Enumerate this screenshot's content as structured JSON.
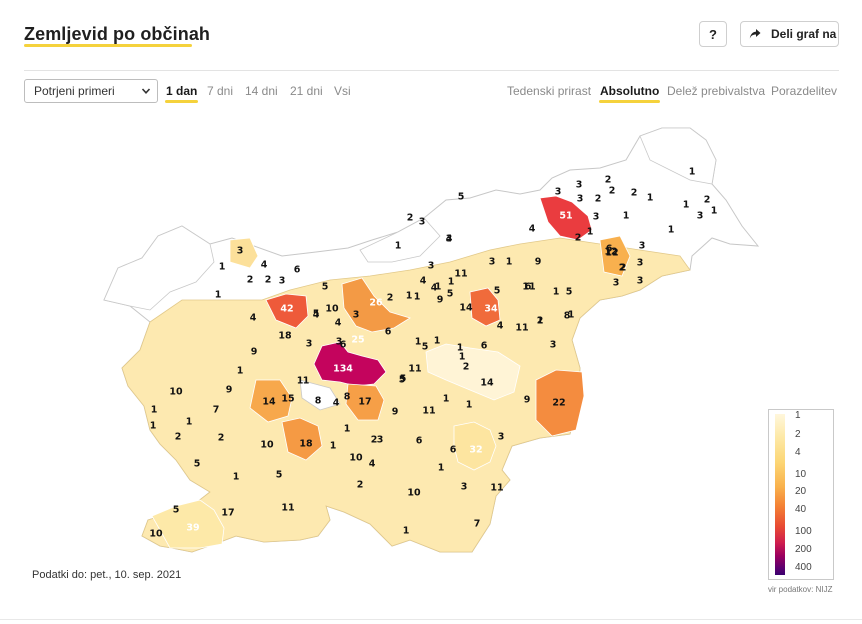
{
  "header": {
    "title": "Zemljevid po občinah",
    "help_label": "?",
    "share_label": "Deli graf na"
  },
  "controls": {
    "select_value": "Potrjeni primeri",
    "period_tabs": [
      "1 dan",
      "7 dni",
      "14 dni",
      "21 dni",
      "Vsi"
    ],
    "period_active": "1 dan",
    "mode_tabs": [
      "Tedenski prirast",
      "Absolutno",
      "Delež prebivalstva",
      "Porazdelitev"
    ],
    "mode_active": "Absolutno"
  },
  "legend": {
    "values": [
      "1",
      "2",
      "4",
      "10",
      "20",
      "40",
      "100",
      "200",
      "400"
    ]
  },
  "footer": {
    "date_note": "Podatki do: pet., 10. sep. 2021",
    "source": "vir podatkov: NIJZ"
  },
  "map_values": [
    {
      "v": "5",
      "c": "#fde5a0"
    },
    {
      "v": "1",
      "c": "#fff4d6"
    },
    {
      "v": "3",
      "c": "#fde9a8"
    },
    {
      "v": "2",
      "c": "#fdf0c6"
    },
    {
      "v": "2",
      "c": "#fdf0c6"
    },
    {
      "v": "1",
      "c": "#fff4d6"
    },
    {
      "v": "3",
      "c": "#fde9a8"
    },
    {
      "v": "3",
      "c": "#fde9a8"
    },
    {
      "v": "2",
      "c": "#fdf0c6"
    },
    {
      "v": "1",
      "c": "#fff4d6"
    },
    {
      "v": "51",
      "c": "#ea3c3f"
    },
    {
      "v": "2",
      "c": "#fdf0c6"
    },
    {
      "v": "3",
      "c": "#fde9a8"
    },
    {
      "v": "2",
      "c": "#fdf0c6"
    },
    {
      "v": "3",
      "c": "#fde9a8"
    },
    {
      "v": "1",
      "c": "#fff4d6"
    },
    {
      "v": "1",
      "c": "#fff4d6"
    },
    {
      "v": "2",
      "c": "#fdf0c6"
    },
    {
      "v": "2",
      "c": "#fdf0c6"
    },
    {
      "v": "3",
      "c": "#fde9a8"
    },
    {
      "v": "3",
      "c": "#fde9a8"
    },
    {
      "v": "1",
      "c": "#fff4d6"
    },
    {
      "v": "4",
      "c": "#fce09a"
    },
    {
      "v": "1",
      "c": "#fff4d6"
    },
    {
      "v": "6",
      "c": "#fcd983"
    },
    {
      "v": "3",
      "c": "#fde9a8"
    },
    {
      "v": "12",
      "c": "#f8b04e"
    },
    {
      "v": "2",
      "c": "#fdf0c6"
    },
    {
      "v": "3",
      "c": "#fde9a8"
    },
    {
      "v": "3",
      "c": "#fde9a8"
    },
    {
      "v": "2",
      "c": "#fdf0c6"
    },
    {
      "v": "3",
      "c": "#fde9a8"
    },
    {
      "v": "4",
      "c": "#fce09a"
    },
    {
      "v": "11",
      "c": "#f9b75a"
    },
    {
      "v": "9",
      "c": "#fbc76b"
    },
    {
      "v": "1",
      "c": "#fff4d6"
    },
    {
      "v": "3",
      "c": "#fde9a8"
    },
    {
      "v": "3",
      "c": "#fde9a8"
    },
    {
      "v": "1",
      "c": "#fff4d6"
    },
    {
      "v": "4",
      "c": "#fce09a"
    },
    {
      "v": "1",
      "c": "#fff4d6"
    },
    {
      "v": "4",
      "c": "#fce09a"
    },
    {
      "v": "6",
      "c": "#fcd983"
    },
    {
      "v": "5",
      "c": "#fde5a0"
    },
    {
      "v": "11",
      "c": "#f9b75a"
    },
    {
      "v": "3",
      "c": "#fde9a8"
    },
    {
      "v": "1",
      "c": "#fff4d6"
    },
    {
      "v": "1",
      "c": "#fff4d6"
    },
    {
      "v": "2",
      "c": "#fdf0c6"
    },
    {
      "v": "2",
      "c": "#fdf0c6"
    },
    {
      "v": "3",
      "c": "#fde9a8"
    },
    {
      "v": "1",
      "c": "#fff4d6"
    },
    {
      "v": "1",
      "c": "#fff4d6"
    },
    {
      "v": "4",
      "c": "#fce09a"
    },
    {
      "v": "5",
      "c": "#fde5a0"
    },
    {
      "v": "6",
      "c": "#fcd983"
    },
    {
      "v": "4",
      "c": "#fce09a"
    },
    {
      "v": "1",
      "c": "#fff4d6"
    },
    {
      "v": "5",
      "c": "#fde5a0"
    },
    {
      "v": "12",
      "c": "#f8b04e"
    },
    {
      "v": "1",
      "c": "#fff4d6"
    },
    {
      "v": "1",
      "c": "#fff4d6"
    },
    {
      "v": "42",
      "c": "#ee5a3a"
    },
    {
      "v": "5",
      "c": "#fde5a0"
    },
    {
      "v": "26",
      "c": "#f39a45"
    },
    {
      "v": "2",
      "c": "#fdf0c6"
    },
    {
      "v": "1",
      "c": "#fff4d6"
    },
    {
      "v": "9",
      "c": "#fbc76b"
    },
    {
      "v": "5",
      "c": "#fde5a0"
    },
    {
      "v": "8",
      "c": "#fcca72"
    },
    {
      "v": "6",
      "c": "#fcd983"
    },
    {
      "v": "4",
      "c": "#fce09a"
    },
    {
      "v": "10",
      "c": "#fac064"
    },
    {
      "v": "4",
      "c": "#fce09a"
    },
    {
      "v": "3",
      "c": "#fde9a8"
    },
    {
      "v": "14",
      "c": "#f7a84c"
    },
    {
      "v": "34",
      "c": "#f06b3b"
    },
    {
      "v": "11",
      "c": "#f9b75a"
    },
    {
      "v": "2",
      "c": "#fdf0c6"
    },
    {
      "v": "18",
      "c": "#f59a44"
    },
    {
      "v": "3",
      "c": "#fde9a8"
    },
    {
      "v": "6",
      "c": "#fcd983"
    },
    {
      "v": "4",
      "c": "#fce09a"
    },
    {
      "v": "1",
      "c": "#fff4d6"
    },
    {
      "v": "9",
      "c": "#fbc76b"
    },
    {
      "v": "25",
      "c": "#f28a40"
    },
    {
      "v": "3",
      "c": "#fde9a8"
    },
    {
      "v": "5",
      "c": "#fde5a0"
    },
    {
      "v": "1",
      "c": "#fff4d6"
    },
    {
      "v": "6",
      "c": "#fcd983"
    },
    {
      "v": "3",
      "c": "#fde9a8"
    },
    {
      "v": "1",
      "c": "#fff4d6"
    },
    {
      "v": "1",
      "c": "#fff4d6"
    },
    {
      "v": "5",
      "c": "#fde5a0"
    },
    {
      "v": "1",
      "c": "#fff4d6"
    },
    {
      "v": "134",
      "c": "#c4045d"
    },
    {
      "v": "11",
      "c": "#f9b75a"
    },
    {
      "v": "2",
      "c": "#fdf0c6"
    },
    {
      "v": "10",
      "c": "#fac064"
    },
    {
      "v": "9",
      "c": "#fbc76b"
    },
    {
      "v": "1",
      "c": "#fff4d6"
    },
    {
      "v": "5",
      "c": "#fde5a0"
    },
    {
      "v": "14",
      "c": "#f7a84c"
    },
    {
      "v": "1",
      "c": "#fff4d6"
    },
    {
      "v": "14",
      "c": "#f7a84c"
    },
    {
      "v": "15",
      "c": "#f7a24a"
    },
    {
      "v": "8",
      "c": "#fcca72"
    },
    {
      "v": "4",
      "c": "#fce09a"
    },
    {
      "v": "8",
      "c": "#fcca72"
    },
    {
      "v": "17",
      "c": "#f69f47"
    },
    {
      "v": "9",
      "c": "#fbc76b"
    },
    {
      "v": "11",
      "c": "#f9b75a"
    },
    {
      "v": "1",
      "c": "#fff4d6"
    },
    {
      "v": "9",
      "c": "#fbc76b"
    },
    {
      "v": "22",
      "c": "#f48c3f"
    },
    {
      "v": "1",
      "c": "#fff4d6"
    },
    {
      "v": "7",
      "c": "#fcd07c"
    },
    {
      "v": "1",
      "c": "#fff4d6"
    },
    {
      "v": "1",
      "c": "#fff4d6"
    },
    {
      "v": "2",
      "c": "#fdf0c6"
    },
    {
      "v": "1",
      "c": "#fff4d6"
    },
    {
      "v": "3",
      "c": "#fde9a8"
    },
    {
      "v": "1",
      "c": "#fff4d6"
    },
    {
      "v": "2",
      "c": "#fdf0c6"
    },
    {
      "v": "10",
      "c": "#fac064"
    },
    {
      "v": "18",
      "c": "#f59a44"
    },
    {
      "v": "1",
      "c": "#fff4d6"
    },
    {
      "v": "2",
      "c": "#fdf0c6"
    },
    {
      "v": "6",
      "c": "#fcd983"
    },
    {
      "v": "6",
      "c": "#fcd983"
    },
    {
      "v": "32",
      "c": "#ef6a3b"
    },
    {
      "v": "3",
      "c": "#fde9a8"
    },
    {
      "v": "5",
      "c": "#fde5a0"
    },
    {
      "v": "1",
      "c": "#fff4d6"
    },
    {
      "v": "10",
      "c": "#fac064"
    },
    {
      "v": "4",
      "c": "#fce09a"
    },
    {
      "v": "1",
      "c": "#fff4d6"
    },
    {
      "v": "5",
      "c": "#fde5a0"
    },
    {
      "v": "2",
      "c": "#fdf0c6"
    },
    {
      "v": "3",
      "c": "#fde9a8"
    },
    {
      "v": "11",
      "c": "#f9b75a"
    },
    {
      "v": "10",
      "c": "#fac064"
    },
    {
      "v": "11",
      "c": "#f9b75a"
    },
    {
      "v": "5",
      "c": "#fde5a0"
    },
    {
      "v": "17",
      "c": "#f69f47"
    },
    {
      "v": "39",
      "c": "#ef5c3a"
    },
    {
      "v": "10",
      "c": "#fac064"
    },
    {
      "v": "1",
      "c": "#fff4d6"
    },
    {
      "v": "7",
      "c": "#fcd07c"
    }
  ]
}
